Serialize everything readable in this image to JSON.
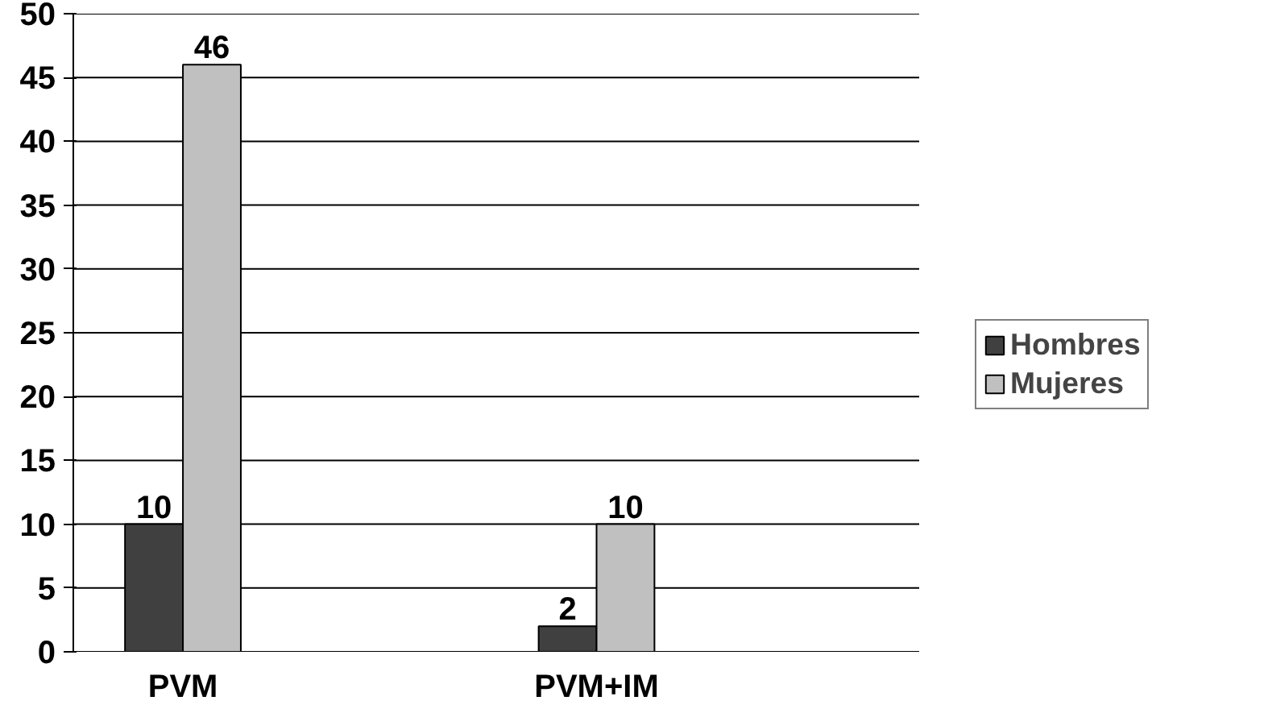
{
  "chart_data": {
    "type": "bar",
    "categories": [
      "PVM",
      "PVM+IM"
    ],
    "series": [
      {
        "name": "Hombres",
        "color": "#404040",
        "values": [
          10,
          2
        ]
      },
      {
        "name": "Mujeres",
        "color": "#c0c0c0",
        "values": [
          46,
          10
        ]
      }
    ],
    "ylim": [
      0,
      50
    ],
    "yticks": [
      0,
      5,
      10,
      15,
      20,
      25,
      30,
      35,
      40,
      45,
      50
    ],
    "grid": "y",
    "legend": "right",
    "data_labels": true
  }
}
